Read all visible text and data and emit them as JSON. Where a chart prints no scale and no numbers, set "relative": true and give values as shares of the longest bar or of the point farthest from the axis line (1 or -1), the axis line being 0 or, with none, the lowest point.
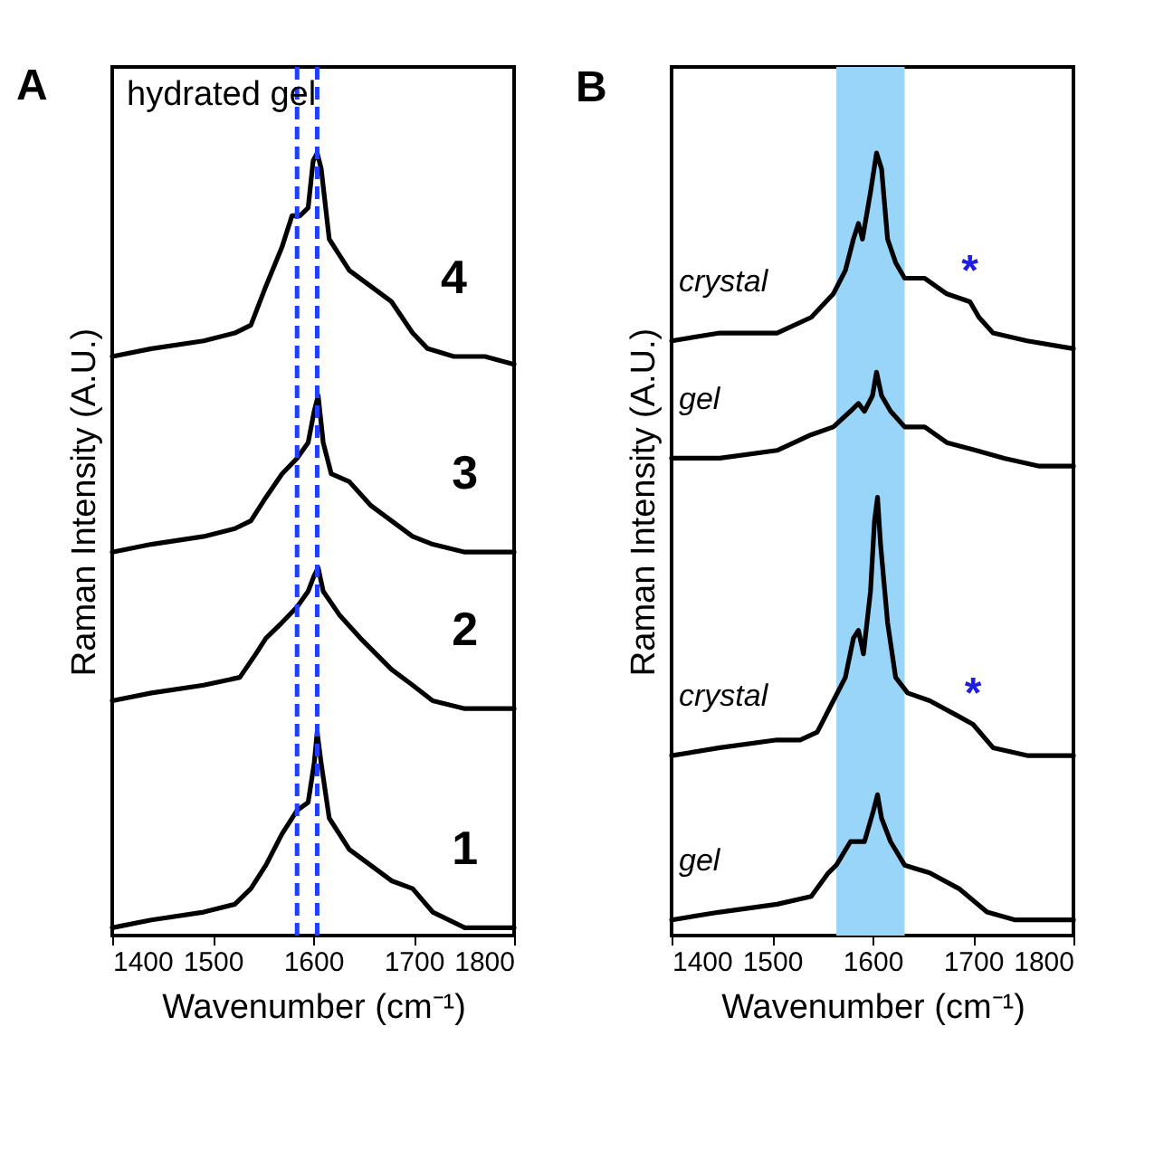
{
  "chart_data": [
    {
      "type": "line",
      "title": "A",
      "xlabel": "Wavenumber (cm⁻¹)",
      "ylabel": "Raman Intensity (A.U.)",
      "relative": true,
      "xlim": [
        1400,
        1800
      ],
      "xticks": [
        1400,
        1500,
        1600,
        1700,
        1800
      ],
      "grid": false,
      "legend": false,
      "annotations": [
        "hydrated gel"
      ],
      "ref_lines": [
        {
          "axis": "x",
          "value": 1584,
          "color": "#1f3fff",
          "line_style": "dashed"
        },
        {
          "axis": "x",
          "value": 1604,
          "color": "#1f3fff",
          "line_style": "dashed"
        }
      ],
      "series": [
        {
          "name": "4",
          "color": "#000000",
          "x": [
            1400,
            1439,
            1491,
            1522,
            1538,
            1553,
            1569,
            1579,
            1587,
            1595,
            1600,
            1604,
            1608,
            1616,
            1626,
            1636,
            1657,
            1678,
            1699,
            1714,
            1740,
            1771,
            1800
          ],
          "values": [
            0.74,
            0.75,
            0.76,
            0.77,
            0.78,
            0.83,
            0.88,
            0.92,
            0.92,
            0.93,
            0.99,
            1.0,
            0.98,
            0.89,
            0.87,
            0.85,
            0.83,
            0.81,
            0.77,
            0.75,
            0.74,
            0.74,
            0.73
          ]
        },
        {
          "name": "3",
          "color": "#000000",
          "x": [
            1400,
            1439,
            1491,
            1522,
            1538,
            1553,
            1569,
            1584,
            1595,
            1601,
            1605,
            1610,
            1618,
            1636,
            1657,
            1678,
            1699,
            1719,
            1751,
            1800
          ],
          "values": [
            0.49,
            0.5,
            0.51,
            0.52,
            0.53,
            0.56,
            0.59,
            0.61,
            0.63,
            0.67,
            0.69,
            0.63,
            0.59,
            0.58,
            0.55,
            0.53,
            0.51,
            0.5,
            0.49,
            0.49
          ]
        },
        {
          "name": "2",
          "color": "#000000",
          "x": [
            1400,
            1439,
            1491,
            1527,
            1543,
            1553,
            1569,
            1584,
            1595,
            1601,
            1605,
            1610,
            1626,
            1647,
            1678,
            1699,
            1719,
            1751,
            1800
          ],
          "values": [
            0.3,
            0.31,
            0.32,
            0.33,
            0.36,
            0.38,
            0.4,
            0.42,
            0.44,
            0.46,
            0.47,
            0.44,
            0.41,
            0.38,
            0.34,
            0.32,
            0.3,
            0.29,
            0.29
          ]
        },
        {
          "name": "1",
          "color": "#000000",
          "x": [
            1400,
            1439,
            1491,
            1522,
            1538,
            1553,
            1569,
            1584,
            1595,
            1601,
            1604,
            1608,
            1616,
            1636,
            1657,
            1678,
            1699,
            1719,
            1751,
            1800
          ],
          "values": [
            0.01,
            0.02,
            0.03,
            0.04,
            0.06,
            0.09,
            0.13,
            0.16,
            0.17,
            0.22,
            0.26,
            0.22,
            0.15,
            0.11,
            0.09,
            0.07,
            0.06,
            0.03,
            0.01,
            0.01
          ]
        }
      ]
    },
    {
      "type": "line",
      "title": "B",
      "xlabel": "Wavenumber (cm⁻¹)",
      "ylabel": "Raman Intensity (A.U.)",
      "relative": true,
      "xlim": [
        1400,
        1800
      ],
      "xticks": [
        1400,
        1500,
        1600,
        1700,
        1800
      ],
      "grid": false,
      "legend": false,
      "annotations": [
        {
          "text": "*",
          "x": 1697,
          "y": 0.81
        },
        {
          "text": "*",
          "x": 1700,
          "y": 0.27
        }
      ],
      "bands": [
        {
          "axis": "x",
          "from": 1564,
          "to": 1632,
          "color": "#99d5f8"
        }
      ],
      "series": [
        {
          "name": "crystal",
          "color": "#000000",
          "x": [
            1400,
            1448,
            1505,
            1539,
            1561,
            1573,
            1581,
            1586,
            1590,
            1598,
            1604,
            1609,
            1615,
            1623,
            1632,
            1652,
            1674,
            1697,
            1706,
            1720,
            1754,
            1800
          ],
          "values": [
            0.76,
            0.77,
            0.77,
            0.79,
            0.82,
            0.85,
            0.89,
            0.91,
            0.89,
            0.95,
            1.0,
            0.98,
            0.89,
            0.86,
            0.84,
            0.84,
            0.82,
            0.81,
            0.79,
            0.77,
            0.76,
            0.75
          ]
        },
        {
          "name": "gel",
          "color": "#000000",
          "x": [
            1400,
            1448,
            1505,
            1539,
            1561,
            1578,
            1586,
            1592,
            1600,
            1604,
            1609,
            1618,
            1632,
            1652,
            1674,
            1703,
            1731,
            1765,
            1800
          ],
          "values": [
            0.61,
            0.61,
            0.62,
            0.64,
            0.65,
            0.67,
            0.68,
            0.67,
            0.69,
            0.72,
            0.69,
            0.67,
            0.65,
            0.65,
            0.63,
            0.62,
            0.61,
            0.6,
            0.6
          ]
        },
        {
          "name": "crystal",
          "color": "#000000",
          "x": [
            1400,
            1448,
            1505,
            1528,
            1545,
            1561,
            1573,
            1581,
            1586,
            1591,
            1598,
            1602,
            1605,
            1608,
            1615,
            1623,
            1635,
            1657,
            1686,
            1700,
            1720,
            1754,
            1800
          ],
          "values": [
            0.23,
            0.24,
            0.25,
            0.25,
            0.26,
            0.3,
            0.33,
            0.38,
            0.39,
            0.36,
            0.44,
            0.53,
            0.56,
            0.5,
            0.4,
            0.33,
            0.31,
            0.3,
            0.28,
            0.27,
            0.24,
            0.23,
            0.23
          ]
        },
        {
          "name": "gel",
          "color": "#000000",
          "x": [
            1400,
            1448,
            1505,
            1539,
            1556,
            1564,
            1578,
            1586,
            1592,
            1601,
            1605,
            1609,
            1618,
            1632,
            1657,
            1686,
            1714,
            1742,
            1800
          ],
          "values": [
            0.02,
            0.03,
            0.04,
            0.05,
            0.08,
            0.09,
            0.12,
            0.12,
            0.12,
            0.16,
            0.18,
            0.15,
            0.12,
            0.09,
            0.08,
            0.06,
            0.03,
            0.02,
            0.02
          ]
        }
      ]
    }
  ]
}
